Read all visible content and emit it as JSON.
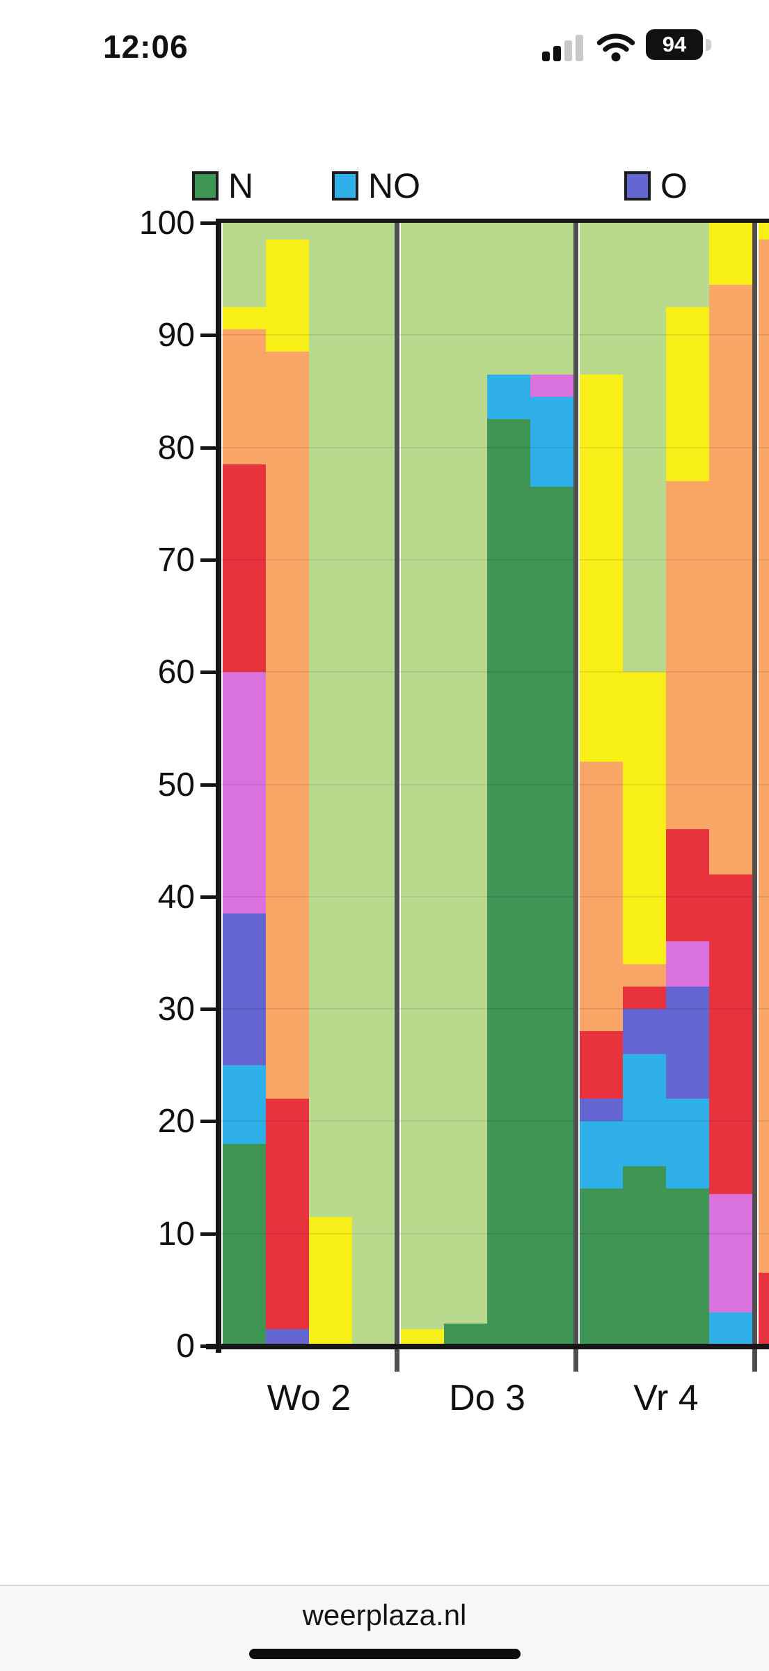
{
  "status_bar": {
    "time": "12:06",
    "battery_level": "94"
  },
  "browser_bar": {
    "url": "weerplaza.nl"
  },
  "chart_data": {
    "type": "bar",
    "subtype": "stacked-percentage-columns",
    "title": "",
    "xlabel": "",
    "ylabel": "",
    "ylim": [
      0,
      100
    ],
    "yticks": [
      0,
      10,
      20,
      30,
      40,
      50,
      60,
      70,
      80,
      90,
      100
    ],
    "grid": true,
    "legend_position": "top",
    "legend": [
      {
        "label": "N",
        "color": "#3e9554"
      },
      {
        "label": "NO",
        "color": "#2fb0e8"
      },
      {
        "label": "O",
        "color": "#6467d1"
      }
    ],
    "colors": {
      "N": "#3e9554",
      "NO": "#2fb0e8",
      "O": "#6467d1",
      "ZO": "#d972dc",
      "Z": "#e8333e",
      "ZW": "#f9a566",
      "W": "#f8ee18",
      "NW": "#b9da8c"
    },
    "categories": [
      "Wo 2",
      "Do 3",
      "Vr 4",
      ""
    ],
    "groups": [
      {
        "label": "Wo 2",
        "bars": [
          {
            "segments": [
              [
                "N",
                18
              ],
              [
                "NO",
                7
              ],
              [
                "O",
                13.5
              ],
              [
                "ZO",
                21.5
              ],
              [
                "Z",
                18.5
              ],
              [
                "ZW",
                12
              ],
              [
                "W",
                2
              ],
              [
                "NW",
                7.5
              ]
            ]
          },
          {
            "segments": [
              [
                "O",
                1.5
              ],
              [
                "Z",
                20.5
              ],
              [
                "ZW",
                66.5
              ],
              [
                "W",
                10
              ],
              [
                "NW",
                1.5
              ]
            ]
          },
          {
            "segments": [
              [
                "W",
                11.5
              ],
              [
                "NW",
                88.5
              ]
            ]
          },
          {
            "segments": [
              [
                "NW",
                100
              ]
            ]
          }
        ]
      },
      {
        "label": "Do 3",
        "bars": [
          {
            "segments": [
              [
                "W",
                1.5
              ],
              [
                "NW",
                98.5
              ]
            ]
          },
          {
            "segments": [
              [
                "N",
                2
              ],
              [
                "NW",
                98
              ]
            ]
          },
          {
            "segments": [
              [
                "N",
                82.5
              ],
              [
                "NO",
                4
              ],
              [
                "NW",
                13.5
              ]
            ]
          },
          {
            "segments": [
              [
                "N",
                76.5
              ],
              [
                "NO",
                8
              ],
              [
                "ZO",
                2
              ],
              [
                "NW",
                13.5
              ]
            ]
          }
        ]
      },
      {
        "label": "Vr 4",
        "bars": [
          {
            "segments": [
              [
                "N",
                14
              ],
              [
                "NO",
                6
              ],
              [
                "O",
                2
              ],
              [
                "Z",
                6
              ],
              [
                "ZW",
                24
              ],
              [
                "W",
                34.5
              ],
              [
                "NW",
                13.5
              ]
            ]
          },
          {
            "segments": [
              [
                "N",
                16
              ],
              [
                "NO",
                10
              ],
              [
                "O",
                4
              ],
              [
                "Z",
                2
              ],
              [
                "ZW",
                2
              ],
              [
                "W",
                26
              ],
              [
                "NW",
                40
              ]
            ]
          },
          {
            "segments": [
              [
                "N",
                14
              ],
              [
                "NO",
                8
              ],
              [
                "O",
                10
              ],
              [
                "ZO",
                4
              ],
              [
                "Z",
                10
              ],
              [
                "ZW",
                31
              ],
              [
                "W",
                15.5
              ],
              [
                "NW",
                7.5
              ]
            ]
          },
          {
            "segments": [
              [
                "NO",
                3
              ],
              [
                "ZO",
                10.5
              ],
              [
                "Z",
                28.5
              ],
              [
                "ZW",
                52.5
              ],
              [
                "W",
                5.5
              ]
            ]
          }
        ]
      },
      {
        "label": "",
        "partial": true,
        "bars": [
          {
            "segments": [
              [
                "Z",
                6.5
              ],
              [
                "ZW",
                92
              ],
              [
                "W",
                1.5
              ]
            ]
          }
        ]
      }
    ]
  }
}
